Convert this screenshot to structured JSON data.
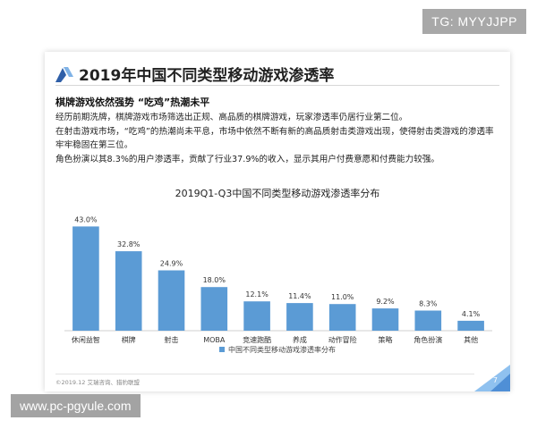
{
  "badge": {
    "text": "TG: MYYJJPP"
  },
  "slide": {
    "title": "2019年中国不同类型移动游戏渗透率",
    "heading": "棋牌游戏依然强势 “吃鸡”热潮未平",
    "paragraphs": [
      "经历前期洗牌，棋牌游戏市场筛选出正规、高品质的棋牌游戏，玩家渗透率仍居行业第二位。",
      "在射击游戏市场，“吃鸡”的热潮尚未平息，市场中依然不断有新的高品质射击类游戏出现，使得射击类游戏的渗透率牢牢稳固在第三位。",
      "角色扮演以其8.3%的用户渗透率，贡献了行业37.9%的收入，显示其用户付费意愿和付费能力较强。"
    ],
    "footer": "©2019.12  艾瑞咨询、猎豹联盟",
    "page_number": "7"
  },
  "watermark": {
    "text": "www.pc-pgyule.com"
  },
  "colors": {
    "bar": "#5b9bd5",
    "accent": "#3a78c3"
  },
  "chart_data": {
    "type": "bar",
    "title": "2019Q1-Q3中国不同类型移动游戏渗透率分布",
    "categories": [
      "休闲益智",
      "棋牌",
      "射击",
      "MOBA",
      "竞速跑酷",
      "养成",
      "动作冒险",
      "策略",
      "角色扮演",
      "其他"
    ],
    "values": [
      43.0,
      32.8,
      24.9,
      18.0,
      12.1,
      11.4,
      11.0,
      9.2,
      8.3,
      4.1
    ],
    "value_labels": [
      "43.0%",
      "32.8%",
      "24.9%",
      "18.0%",
      "12.1%",
      "11.4%",
      "11.0%",
      "9.2%",
      "8.3%",
      "4.1%"
    ],
    "series": [
      {
        "name": "中国不同类型移动游戏渗透率分布"
      }
    ],
    "legend": "bottom",
    "grid": false,
    "ylim": [
      0,
      45
    ]
  }
}
